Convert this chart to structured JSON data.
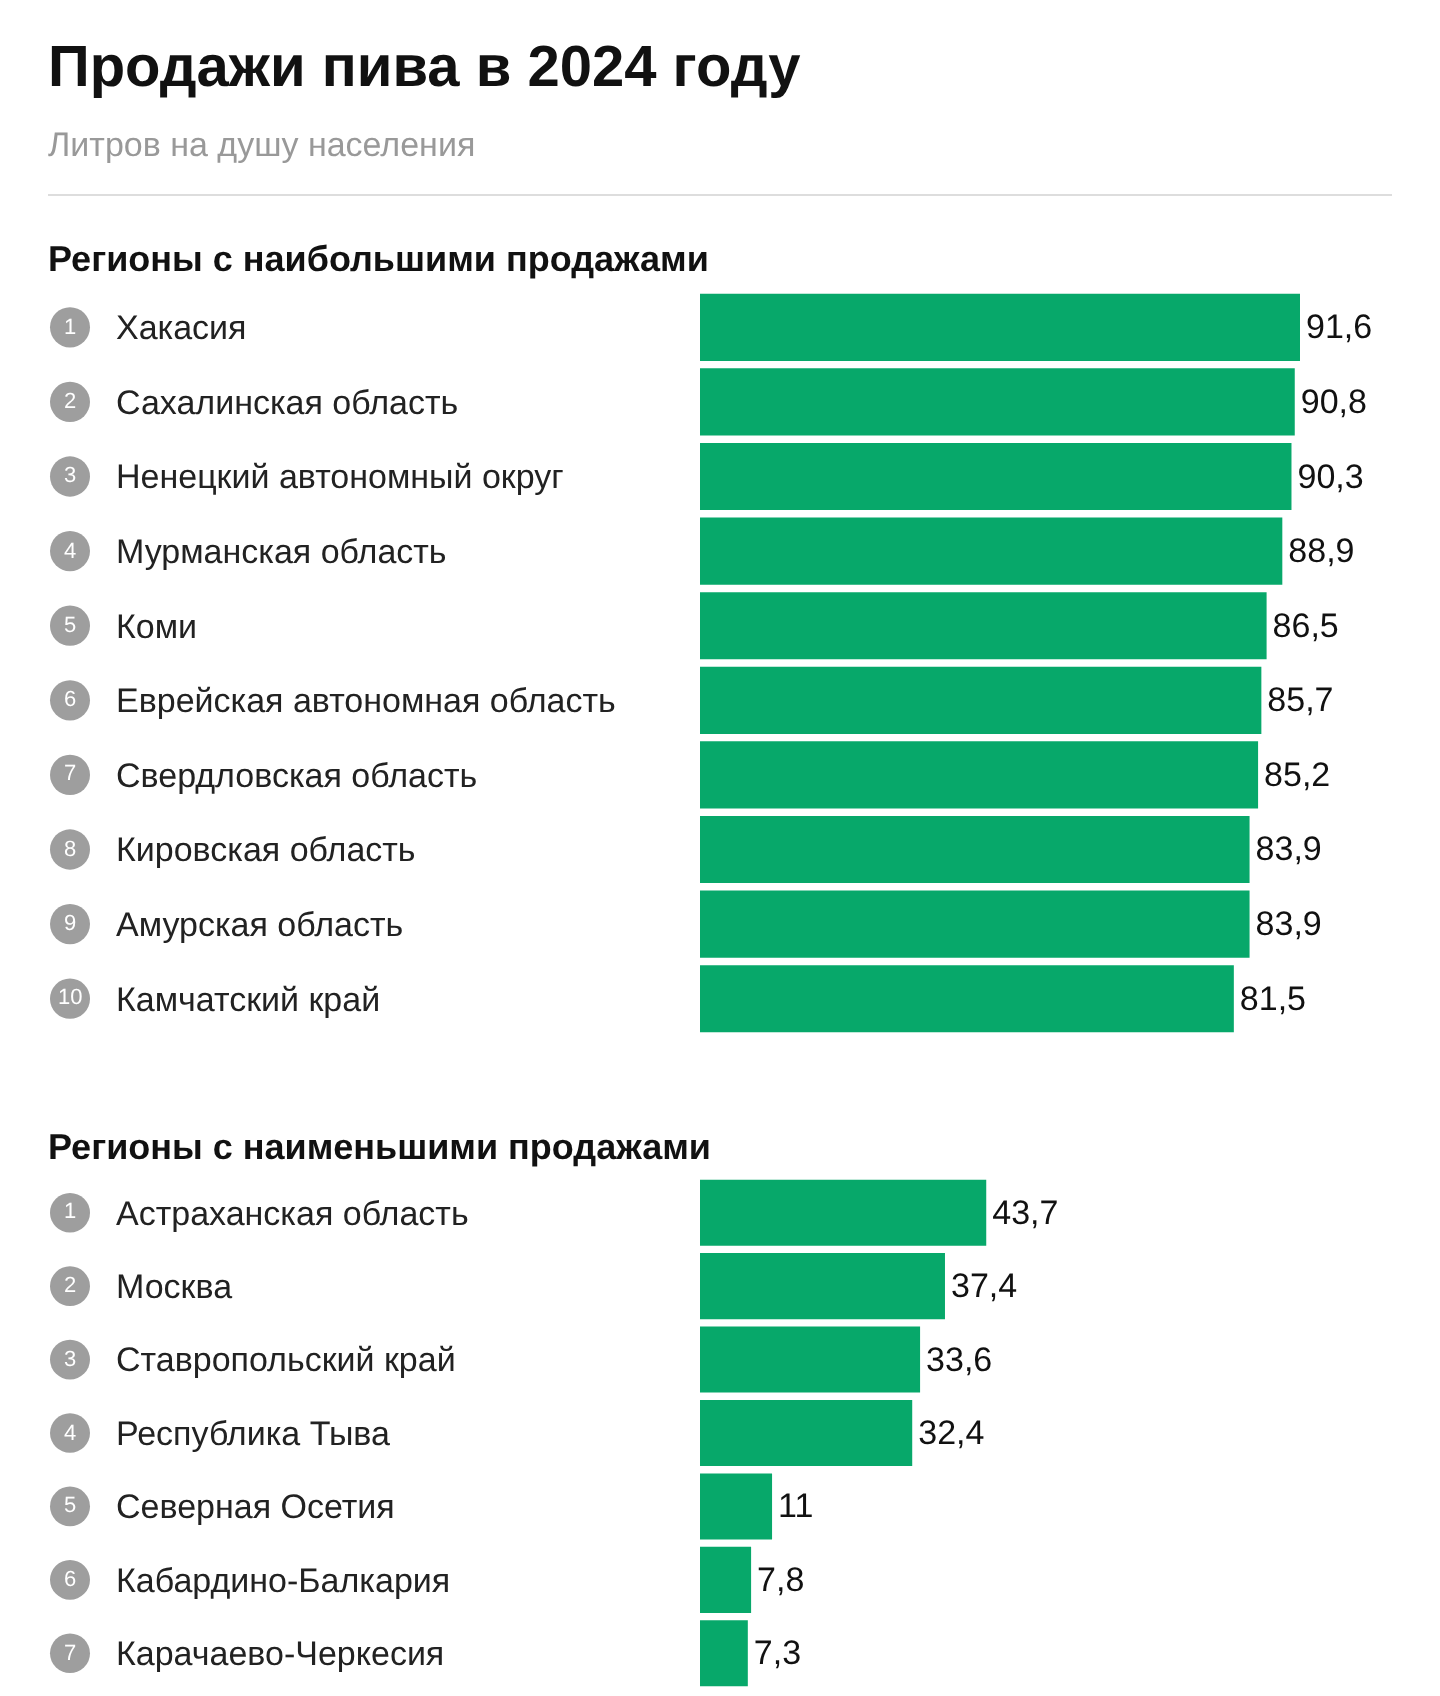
{
  "chart_data": [
    {
      "type": "other",
      "title": "Продажи пива в 2024 году",
      "subtitle": "Литров на душу населения"
    },
    {
      "type": "bar",
      "orientation": "horizontal",
      "title": "Регионы с наибольшими продажами",
      "categories": [
        "Хакасия",
        "Сахалинская область",
        "Ненецкий автономный округ",
        "Мурманская область",
        "Коми",
        "Еврейская автономная область",
        "Свердловская область",
        "Кировская область",
        "Амурская область",
        "Камчатский край"
      ],
      "values": [
        91.6,
        90.8,
        90.3,
        88.9,
        86.5,
        85.7,
        85.2,
        83.9,
        83.9,
        81.5
      ],
      "value_labels": [
        "91,6",
        "90,8",
        "90,3",
        "88,9",
        "86,5",
        "85,7",
        "85,2",
        "83,9",
        "83,9",
        "81,5"
      ],
      "color": "#07a86a",
      "tick_labels": "y",
      "annotations": [
        "1",
        "2",
        "3",
        "4",
        "5",
        "6",
        "7",
        "8",
        "9",
        "10"
      ]
    },
    {
      "type": "bar",
      "orientation": "horizontal",
      "title": "Регионы с наименьшими продажами",
      "categories": [
        "Астраханская область",
        "Москва",
        "Ставропольский край",
        "Республика Тыва",
        "Северная Осетия",
        "Кабардино-Балкария",
        "Карачаево-Черкесия"
      ],
      "values": [
        43.7,
        37.4,
        33.6,
        32.4,
        11,
        7.8,
        7.3
      ],
      "value_labels": [
        "43,7",
        "37,4",
        "33,6",
        "32,4",
        "11",
        "7,8",
        "7,3"
      ],
      "color": "#07a86a",
      "tick_labels": "y",
      "annotations": [
        "1",
        "2",
        "3",
        "4",
        "5",
        "6",
        "7"
      ]
    }
  ]
}
